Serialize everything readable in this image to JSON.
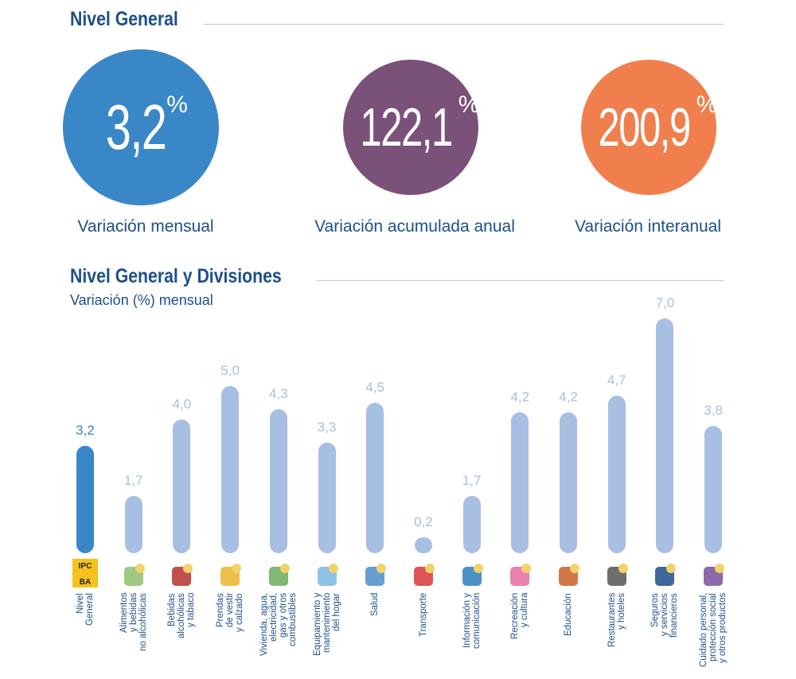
{
  "header": {
    "title": "Nivel General"
  },
  "kpis": [
    {
      "value": "3,2",
      "unit": "%",
      "label": "Variación mensual",
      "color": "#3a87c8"
    },
    {
      "value": "122,1",
      "unit": "%",
      "label": "Variación acumulada anual",
      "color": "#7a5179"
    },
    {
      "value": "200,9",
      "unit": "%",
      "label": "Variación interanual",
      "color": "#f07f4d"
    }
  ],
  "chart_data": {
    "type": "bar",
    "title": "Nivel General y Divisiones",
    "subtitle": "Variación (%) mensual",
    "categories": [
      "Nivel\nGeneral",
      "Alimentos\ny bebidas\nno alcohólicas",
      "Bebidas\nalcohólicas\ny tabaco",
      "Prendas\nde vestir\ny calzado",
      "Vivienda, agua,\nelectricidad,\ngas y otros\ncombustibles",
      "Equipamiento y\nmantenimiento\ndel hogar",
      "Salud",
      "Transporte",
      "Información y\ncomunicación",
      "Recreación\ny cultura",
      "Educación",
      "Restaurantes\ny hoteles",
      "Seguros\ny servicios\nfinancieros",
      "Cuidado personal,\nprotección social\ny otros productos"
    ],
    "values": [
      3.2,
      1.7,
      4.0,
      5.0,
      4.3,
      3.3,
      4.5,
      0.2,
      1.7,
      4.2,
      4.2,
      4.7,
      7.0,
      3.8
    ],
    "value_labels": [
      "3,2",
      "1,7",
      "4,0",
      "5,0",
      "4,3",
      "3,3",
      "4,5",
      "0,2",
      "1,7",
      "4,2",
      "4,2",
      "4,7",
      "7,0",
      "3,8"
    ],
    "icons": [
      "ipc-logo-icon",
      "food-icon",
      "bottle-icon",
      "jacket-icon",
      "house-icon",
      "washing-machine-icon",
      "doctor-icon",
      "car-plane-icon",
      "computer-icon",
      "theater-masks-icon",
      "school-icon",
      "restaurant-icon",
      "bank-icon",
      "cosmetics-icon"
    ],
    "icon_text": "IPC BA",
    "highlight_color": "#3a87c8",
    "bar_color": "#a7bfe2",
    "ylim": [
      0,
      7
    ]
  }
}
